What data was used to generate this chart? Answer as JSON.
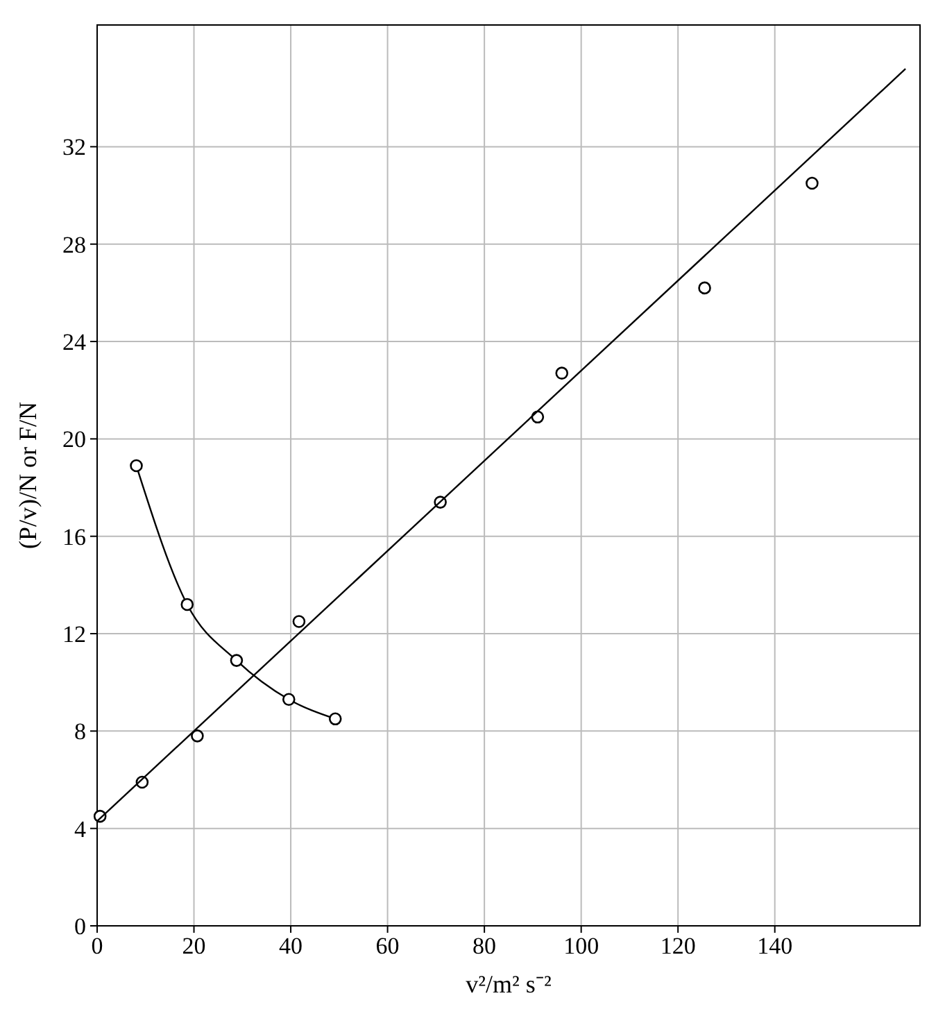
{
  "chart_data": {
    "type": "scatter",
    "xlabel": "v²/m² s⁻²",
    "ylabel": "(P/v)/N or F/N",
    "xlim": [
      0,
      170
    ],
    "ylim": [
      0,
      37
    ],
    "xticks": [
      0,
      20,
      40,
      60,
      80,
      100,
      120,
      140
    ],
    "yticks": [
      0,
      4,
      8,
      12,
      16,
      20,
      24,
      28,
      32
    ],
    "grid": true,
    "marker": "circle",
    "series": [
      {
        "color": "#000000",
        "x": [
          0.6,
          9.3,
          20.7,
          41.7,
          70.9,
          91,
          96,
          125.5,
          147.7
        ],
        "values": [
          4.5,
          5.9,
          7.8,
          12.5,
          17.4,
          20.9,
          22.7,
          26.2,
          30.5
        ]
      },
      {
        "type": "line",
        "color": "#000000",
        "marker": "none",
        "x": [
          0,
          167
        ],
        "values": [
          4.3,
          35.2
        ]
      },
      {
        "type": "line",
        "color": "#000000",
        "marker": "circle",
        "x": [
          8.1,
          18.6,
          28.8,
          39.6,
          49.2
        ],
        "values": [
          18.9,
          13.2,
          10.9,
          9.3,
          8.5
        ]
      }
    ]
  }
}
